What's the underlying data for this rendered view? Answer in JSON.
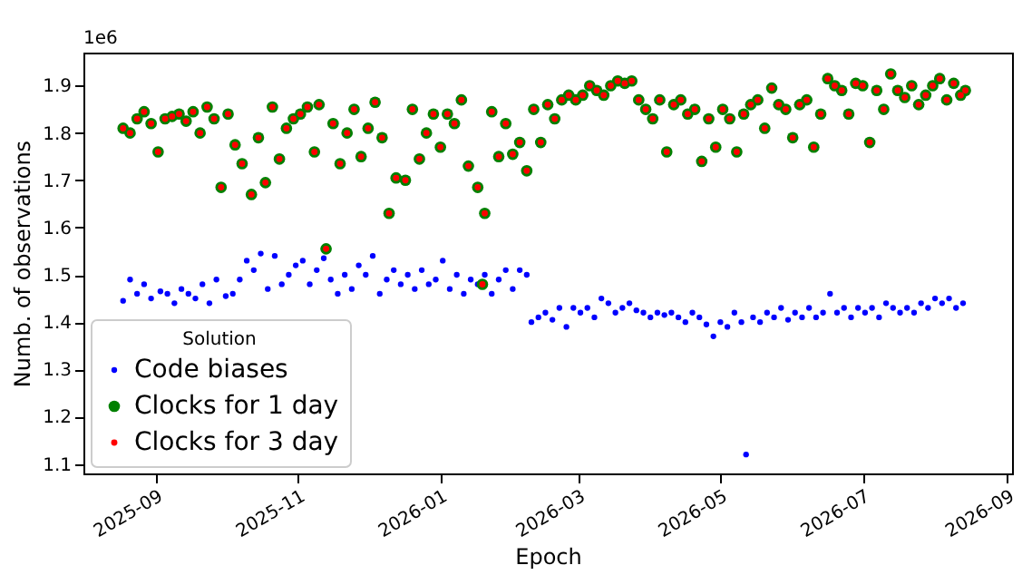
{
  "chart_data": {
    "type": "scatter",
    "xlabel": "Epoch",
    "ylabel": "Numb. of observations",
    "legend_title": "Solution",
    "annotations": [
      "1e6"
    ],
    "xlim": [
      "2025-08-01",
      "2026-09-03"
    ],
    "xticks": [
      "2025-09",
      "2025-11",
      "2026-01",
      "2026-03",
      "2026-05",
      "2026-07",
      "2026-09"
    ],
    "ylim": [
      1.08,
      1.97
    ],
    "yticks": [
      1.1,
      1.2,
      1.3,
      1.4,
      1.5,
      1.6,
      1.7,
      1.8,
      1.9
    ],
    "grid": false,
    "legend": "bottom left",
    "marker": "circle",
    "series": [
      {
        "name": "Code biases",
        "color": "#0000ff",
        "x": [
          "2025-08-18",
          "2025-08-21",
          "2025-08-24",
          "2025-08-27",
          "2025-08-30",
          "2025-09-03",
          "2025-09-06",
          "2025-09-09",
          "2025-09-12",
          "2025-09-15",
          "2025-09-18",
          "2025-09-21",
          "2025-09-24",
          "2025-09-27",
          "2025-10-01",
          "2025-10-04",
          "2025-10-07",
          "2025-10-10",
          "2025-10-13",
          "2025-10-16",
          "2025-10-19",
          "2025-10-22",
          "2025-10-25",
          "2025-10-28",
          "2025-10-31",
          "2025-11-03",
          "2025-11-06",
          "2025-11-09",
          "2025-11-12",
          "2025-11-15",
          "2025-11-18",
          "2025-11-21",
          "2025-11-24",
          "2025-11-27",
          "2025-11-30",
          "2025-12-03",
          "2025-12-06",
          "2025-12-09",
          "2025-12-12",
          "2025-12-15",
          "2025-12-18",
          "2025-12-21",
          "2025-12-24",
          "2025-12-27",
          "2025-12-30",
          "2026-01-02",
          "2026-01-05",
          "2026-01-08",
          "2026-01-11",
          "2026-01-14",
          "2026-01-17",
          "2026-01-20",
          "2026-01-23",
          "2026-01-26",
          "2026-01-29",
          "2026-02-01",
          "2026-02-04",
          "2026-02-07",
          "2026-02-09",
          "2026-02-12",
          "2026-02-15",
          "2026-02-18",
          "2026-02-21",
          "2026-02-24",
          "2026-02-27",
          "2026-03-02",
          "2026-03-05",
          "2026-03-08",
          "2026-03-11",
          "2026-03-14",
          "2026-03-17",
          "2026-03-20",
          "2026-03-23",
          "2026-03-26",
          "2026-03-29",
          "2026-04-01",
          "2026-04-04",
          "2026-04-07",
          "2026-04-10",
          "2026-04-13",
          "2026-04-16",
          "2026-04-19",
          "2026-04-22",
          "2026-04-25",
          "2026-04-28",
          "2026-05-01",
          "2026-05-04",
          "2026-05-07",
          "2026-05-10",
          "2026-05-12",
          "2026-05-15",
          "2026-05-18",
          "2026-05-21",
          "2026-05-24",
          "2026-05-27",
          "2026-05-30",
          "2026-06-02",
          "2026-06-05",
          "2026-06-08",
          "2026-06-11",
          "2026-06-14",
          "2026-06-17",
          "2026-06-20",
          "2026-06-23",
          "2026-06-26",
          "2026-06-29",
          "2026-07-02",
          "2026-07-05",
          "2026-07-08",
          "2026-07-11",
          "2026-07-14",
          "2026-07-17",
          "2026-07-20",
          "2026-07-23",
          "2026-07-26",
          "2026-07-29",
          "2026-08-01",
          "2026-08-04",
          "2026-08-07",
          "2026-08-10",
          "2026-08-13"
        ],
        "values": [
          1.445,
          1.49,
          1.46,
          1.48,
          1.45,
          1.465,
          1.46,
          1.44,
          1.47,
          1.46,
          1.45,
          1.48,
          1.44,
          1.49,
          1.455,
          1.46,
          1.49,
          1.53,
          1.51,
          1.545,
          1.47,
          1.54,
          1.48,
          1.5,
          1.52,
          1.53,
          1.48,
          1.51,
          1.535,
          1.49,
          1.46,
          1.5,
          1.47,
          1.52,
          1.5,
          1.54,
          1.46,
          1.49,
          1.51,
          1.48,
          1.5,
          1.47,
          1.51,
          1.48,
          1.49,
          1.53,
          1.47,
          1.5,
          1.46,
          1.49,
          1.48,
          1.5,
          1.46,
          1.49,
          1.51,
          1.47,
          1.51,
          1.5,
          1.4,
          1.41,
          1.42,
          1.405,
          1.43,
          1.39,
          1.43,
          1.42,
          1.43,
          1.41,
          1.45,
          1.44,
          1.42,
          1.43,
          1.44,
          1.425,
          1.42,
          1.41,
          1.42,
          1.415,
          1.42,
          1.41,
          1.4,
          1.42,
          1.41,
          1.395,
          1.37,
          1.4,
          1.39,
          1.42,
          1.4,
          1.12,
          1.41,
          1.4,
          1.42,
          1.41,
          1.43,
          1.405,
          1.42,
          1.41,
          1.43,
          1.41,
          1.42,
          1.46,
          1.42,
          1.43,
          1.41,
          1.43,
          1.42,
          1.43,
          1.41,
          1.44,
          1.43,
          1.42,
          1.43,
          1.42,
          1.44,
          1.43,
          1.45,
          1.44,
          1.45,
          1.43,
          1.44
        ]
      },
      {
        "name": "Clocks for 1 day",
        "color": "#008000",
        "x": [
          "2025-08-18",
          "2025-08-21",
          "2025-08-24",
          "2025-08-27",
          "2025-08-30",
          "2025-09-02",
          "2025-09-05",
          "2025-09-08",
          "2025-09-11",
          "2025-09-14",
          "2025-09-17",
          "2025-09-20",
          "2025-09-23",
          "2025-09-26",
          "2025-09-29",
          "2025-10-02",
          "2025-10-05",
          "2025-10-08",
          "2025-10-12",
          "2025-10-15",
          "2025-10-18",
          "2025-10-21",
          "2025-10-24",
          "2025-10-27",
          "2025-10-30",
          "2025-11-02",
          "2025-11-05",
          "2025-11-08",
          "2025-11-10",
          "2025-11-13",
          "2025-11-16",
          "2025-11-19",
          "2025-11-22",
          "2025-11-25",
          "2025-11-28",
          "2025-12-01",
          "2025-12-04",
          "2025-12-07",
          "2025-12-10",
          "2025-12-13",
          "2025-12-17",
          "2025-12-20",
          "2025-12-23",
          "2025-12-26",
          "2025-12-29",
          "2026-01-01",
          "2026-01-04",
          "2026-01-07",
          "2026-01-10",
          "2026-01-13",
          "2026-01-17",
          "2026-01-19",
          "2026-01-20",
          "2026-01-23",
          "2026-01-26",
          "2026-01-29",
          "2026-02-01",
          "2026-02-04",
          "2026-02-07",
          "2026-02-10",
          "2026-02-13",
          "2026-02-16",
          "2026-02-19",
          "2026-02-22",
          "2026-02-25",
          "2026-02-28",
          "2026-03-03",
          "2026-03-06",
          "2026-03-09",
          "2026-03-12",
          "2026-03-15",
          "2026-03-18",
          "2026-03-21",
          "2026-03-24",
          "2026-03-27",
          "2026-03-30",
          "2026-04-02",
          "2026-04-05",
          "2026-04-08",
          "2026-04-11",
          "2026-04-14",
          "2026-04-17",
          "2026-04-20",
          "2026-04-23",
          "2026-04-26",
          "2026-04-29",
          "2026-05-02",
          "2026-05-05",
          "2026-05-08",
          "2026-05-11",
          "2026-05-14",
          "2026-05-17",
          "2026-05-20",
          "2026-05-23",
          "2026-05-26",
          "2026-05-29",
          "2026-06-01",
          "2026-06-04",
          "2026-06-07",
          "2026-06-10",
          "2026-06-13",
          "2026-06-16",
          "2026-06-19",
          "2026-06-22",
          "2026-06-25",
          "2026-06-28",
          "2026-07-01",
          "2026-07-04",
          "2026-07-07",
          "2026-07-10",
          "2026-07-13",
          "2026-07-16",
          "2026-07-19",
          "2026-07-22",
          "2026-07-25",
          "2026-07-28",
          "2026-07-31",
          "2026-08-03",
          "2026-08-06",
          "2026-08-09",
          "2026-08-12",
          "2026-08-14"
        ],
        "values": [
          1.81,
          1.8,
          1.83,
          1.845,
          1.82,
          1.76,
          1.83,
          1.835,
          1.84,
          1.825,
          1.845,
          1.8,
          1.855,
          1.83,
          1.685,
          1.84,
          1.775,
          1.735,
          1.67,
          1.79,
          1.695,
          1.855,
          1.745,
          1.81,
          1.83,
          1.84,
          1.855,
          1.76,
          1.86,
          1.555,
          1.82,
          1.735,
          1.8,
          1.85,
          1.75,
          1.81,
          1.865,
          1.79,
          1.63,
          1.705,
          1.7,
          1.85,
          1.745,
          1.8,
          1.84,
          1.77,
          1.84,
          1.82,
          1.87,
          1.73,
          1.685,
          1.48,
          1.63,
          1.845,
          1.75,
          1.82,
          1.755,
          1.78,
          1.72,
          1.85,
          1.78,
          1.86,
          1.83,
          1.87,
          1.88,
          1.87,
          1.88,
          1.9,
          1.89,
          1.88,
          1.9,
          1.91,
          1.905,
          1.91,
          1.87,
          1.85,
          1.83,
          1.87,
          1.76,
          1.86,
          1.87,
          1.84,
          1.85,
          1.74,
          1.83,
          1.77,
          1.85,
          1.83,
          1.76,
          1.84,
          1.86,
          1.87,
          1.81,
          1.895,
          1.86,
          1.85,
          1.79,
          1.86,
          1.87,
          1.77,
          1.84,
          1.915,
          1.9,
          1.89,
          1.84,
          1.905,
          1.9,
          1.78,
          1.89,
          1.85,
          1.925,
          1.89,
          1.875,
          1.9,
          1.86,
          1.88,
          1.9,
          1.915,
          1.87,
          1.905,
          1.88,
          1.89
        ]
      },
      {
        "name": "Clocks for 3 day",
        "color": "#ff0000",
        "x": [
          "2025-08-18",
          "2025-08-21",
          "2025-08-24",
          "2025-08-27",
          "2025-08-30",
          "2025-09-02",
          "2025-09-05",
          "2025-09-08",
          "2025-09-11",
          "2025-09-14",
          "2025-09-17",
          "2025-09-20",
          "2025-09-23",
          "2025-09-26",
          "2025-09-29",
          "2025-10-02",
          "2025-10-05",
          "2025-10-08",
          "2025-10-12",
          "2025-10-15",
          "2025-10-18",
          "2025-10-21",
          "2025-10-24",
          "2025-10-27",
          "2025-10-30",
          "2025-11-02",
          "2025-11-05",
          "2025-11-08",
          "2025-11-10",
          "2025-11-13",
          "2025-11-16",
          "2025-11-19",
          "2025-11-22",
          "2025-11-25",
          "2025-11-28",
          "2025-12-01",
          "2025-12-04",
          "2025-12-07",
          "2025-12-10",
          "2025-12-13",
          "2025-12-17",
          "2025-12-20",
          "2025-12-23",
          "2025-12-26",
          "2025-12-29",
          "2026-01-01",
          "2026-01-04",
          "2026-01-07",
          "2026-01-10",
          "2026-01-13",
          "2026-01-17",
          "2026-01-19",
          "2026-01-20",
          "2026-01-23",
          "2026-01-26",
          "2026-01-29",
          "2026-02-01",
          "2026-02-04",
          "2026-02-07",
          "2026-02-10",
          "2026-02-13",
          "2026-02-16",
          "2026-02-19",
          "2026-02-22",
          "2026-02-25",
          "2026-02-28",
          "2026-03-03",
          "2026-03-06",
          "2026-03-09",
          "2026-03-12",
          "2026-03-15",
          "2026-03-18",
          "2026-03-21",
          "2026-03-24",
          "2026-03-27",
          "2026-03-30",
          "2026-04-02",
          "2026-04-05",
          "2026-04-08",
          "2026-04-11",
          "2026-04-14",
          "2026-04-17",
          "2026-04-20",
          "2026-04-23",
          "2026-04-26",
          "2026-04-29",
          "2026-05-02",
          "2026-05-05",
          "2026-05-08",
          "2026-05-11",
          "2026-05-14",
          "2026-05-17",
          "2026-05-20",
          "2026-05-23",
          "2026-05-26",
          "2026-05-29",
          "2026-06-01",
          "2026-06-04",
          "2026-06-07",
          "2026-06-10",
          "2026-06-13",
          "2026-06-16",
          "2026-06-19",
          "2026-06-22",
          "2026-06-25",
          "2026-06-28",
          "2026-07-01",
          "2026-07-04",
          "2026-07-07",
          "2026-07-10",
          "2026-07-13",
          "2026-07-16",
          "2026-07-19",
          "2026-07-22",
          "2026-07-25",
          "2026-07-28",
          "2026-07-31",
          "2026-08-03",
          "2026-08-06",
          "2026-08-09",
          "2026-08-12",
          "2026-08-14"
        ],
        "values": [
          1.81,
          1.8,
          1.83,
          1.845,
          1.82,
          1.76,
          1.83,
          1.835,
          1.84,
          1.825,
          1.845,
          1.8,
          1.855,
          1.83,
          1.685,
          1.84,
          1.775,
          1.735,
          1.67,
          1.79,
          1.695,
          1.855,
          1.745,
          1.81,
          1.83,
          1.84,
          1.855,
          1.76,
          1.86,
          1.555,
          1.82,
          1.735,
          1.8,
          1.85,
          1.75,
          1.81,
          1.865,
          1.79,
          1.63,
          1.705,
          1.7,
          1.85,
          1.745,
          1.8,
          1.84,
          1.77,
          1.84,
          1.82,
          1.87,
          1.73,
          1.685,
          1.48,
          1.63,
          1.845,
          1.75,
          1.82,
          1.755,
          1.78,
          1.72,
          1.85,
          1.78,
          1.86,
          1.83,
          1.87,
          1.88,
          1.87,
          1.88,
          1.9,
          1.89,
          1.88,
          1.9,
          1.91,
          1.905,
          1.91,
          1.87,
          1.85,
          1.83,
          1.87,
          1.76,
          1.86,
          1.87,
          1.84,
          1.85,
          1.74,
          1.83,
          1.77,
          1.85,
          1.83,
          1.76,
          1.84,
          1.86,
          1.87,
          1.81,
          1.895,
          1.86,
          1.85,
          1.79,
          1.86,
          1.87,
          1.77,
          1.84,
          1.915,
          1.9,
          1.89,
          1.84,
          1.905,
          1.9,
          1.78,
          1.89,
          1.85,
          1.925,
          1.89,
          1.875,
          1.9,
          1.86,
          1.88,
          1.9,
          1.915,
          1.87,
          1.905,
          1.88,
          1.89
        ]
      }
    ]
  }
}
